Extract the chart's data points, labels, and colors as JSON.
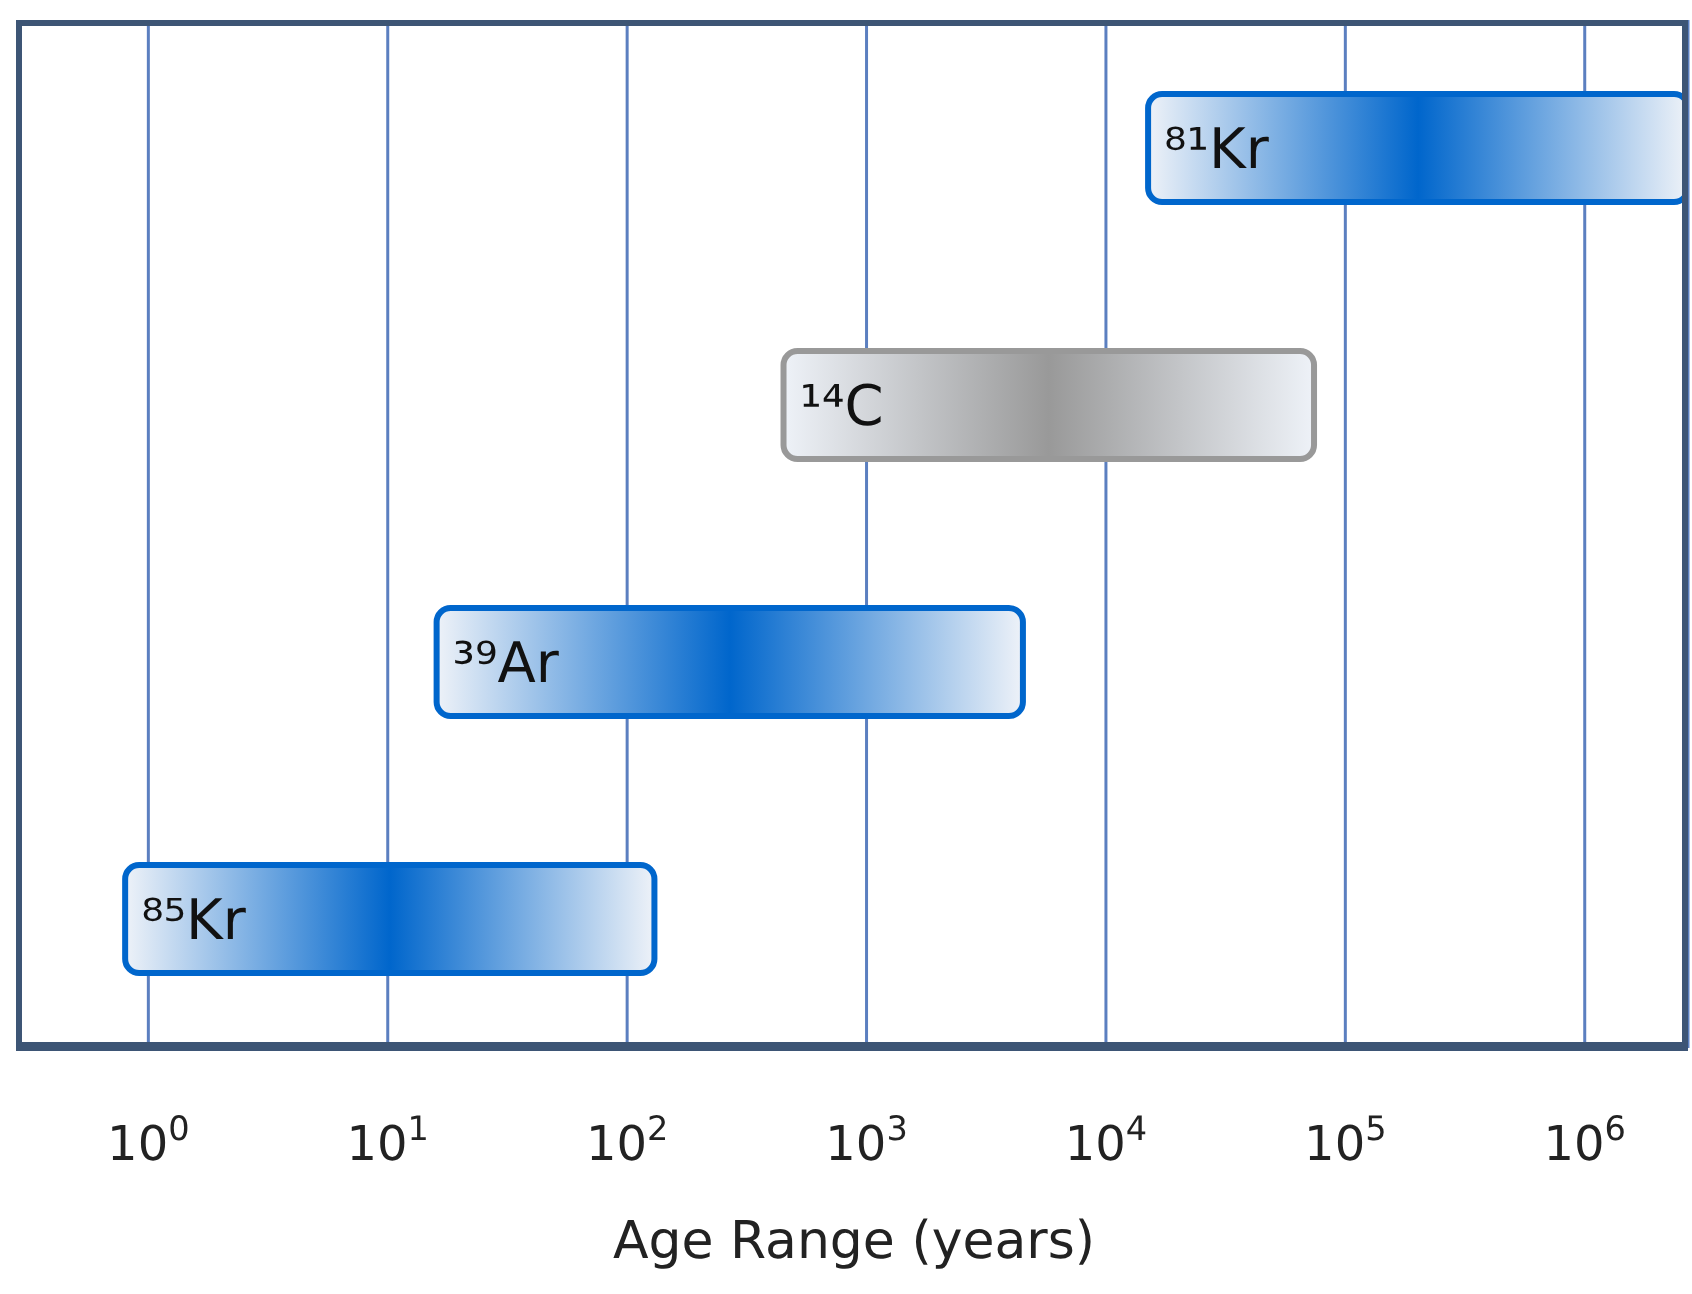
{
  "chart_data": {
    "type": "bar",
    "orientation": "horizontal",
    "xlabel": "Age Range (years)",
    "categories": [
      "⁸¹Kr",
      "¹⁴C",
      "³⁹Ar",
      "⁸⁵Kr"
    ],
    "base": [
      15000,
      450,
      16,
      0.8
    ],
    "values": [
      2685000,
      73550,
      4484,
      129.2
    ],
    "colors": [
      "#0066cc",
      "#999999",
      "#0066cc",
      "#0066cc"
    ],
    "log": "x",
    "xlim": [
      0.28,
      2700000
    ],
    "xticks": [
      {
        "value": 1,
        "label": "10$^{0}$"
      },
      {
        "value": 10,
        "label": "10$^{1}$"
      },
      {
        "value": 100,
        "label": "10$^{2}$"
      },
      {
        "value": 1000,
        "label": "10$^{3}$"
      },
      {
        "value": 10000,
        "label": "10$^{4}$"
      },
      {
        "value": 100000,
        "label": "10$^{5}$"
      },
      {
        "value": 1000000,
        "label": "10$^{6}$"
      }
    ],
    "grid": "x"
  }
}
